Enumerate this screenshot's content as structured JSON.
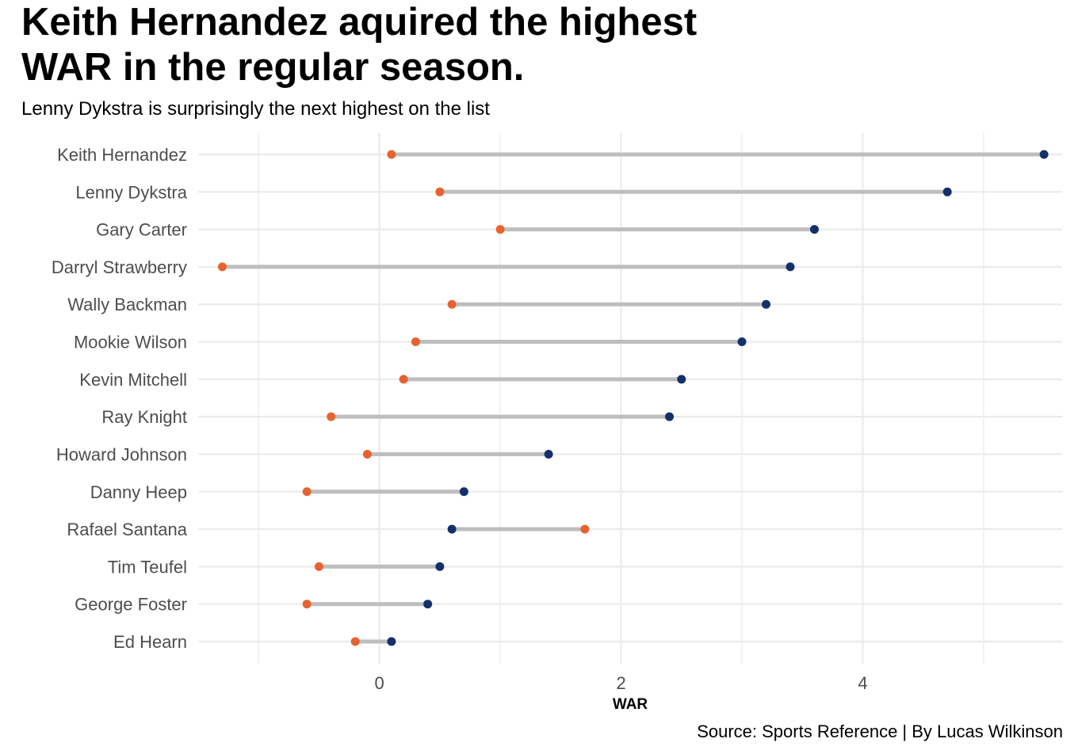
{
  "title": "Keith Hernandez aquired the highest\nWAR in the regular season.",
  "subtitle": "Lenny Dykstra is surprisingly the next highest on the list",
  "caption": "Source: Sports Reference | By Lucas Wilkinson",
  "colors": {
    "regular": "#14306b",
    "other": "#e8622f",
    "segment": "#bebebe",
    "grid": "#ebebeb",
    "axis_text": "#4d4d4d"
  },
  "chart_data": {
    "type": "dumbbell",
    "xlabel": "WAR",
    "ylabel": "",
    "xlim": [
      -1.5,
      5.65
    ],
    "x_ticks": [
      0,
      2,
      4
    ],
    "grid": true,
    "legend": "none",
    "categories": [
      "Keith Hernandez",
      "Lenny Dykstra",
      "Gary Carter",
      "Darryl Strawberry",
      "Wally Backman",
      "Mookie Wilson",
      "Kevin Mitchell",
      "Ray Knight",
      "Howard Johnson",
      "Danny Heep",
      "Rafael Santana",
      "Tim Teufel",
      "George Foster",
      "Ed Hearn"
    ],
    "series": [
      {
        "color": "#14306b",
        "values": [
          5.5,
          4.7,
          3.6,
          3.4,
          3.2,
          3.0,
          2.5,
          2.4,
          1.4,
          0.7,
          0.6,
          0.5,
          0.4,
          0.1
        ]
      },
      {
        "color": "#e8622f",
        "values": [
          0.1,
          0.5,
          1.0,
          -1.3,
          0.6,
          0.3,
          0.2,
          -0.4,
          -0.1,
          -0.6,
          1.7,
          -0.5,
          -0.6,
          -0.2
        ]
      }
    ]
  }
}
